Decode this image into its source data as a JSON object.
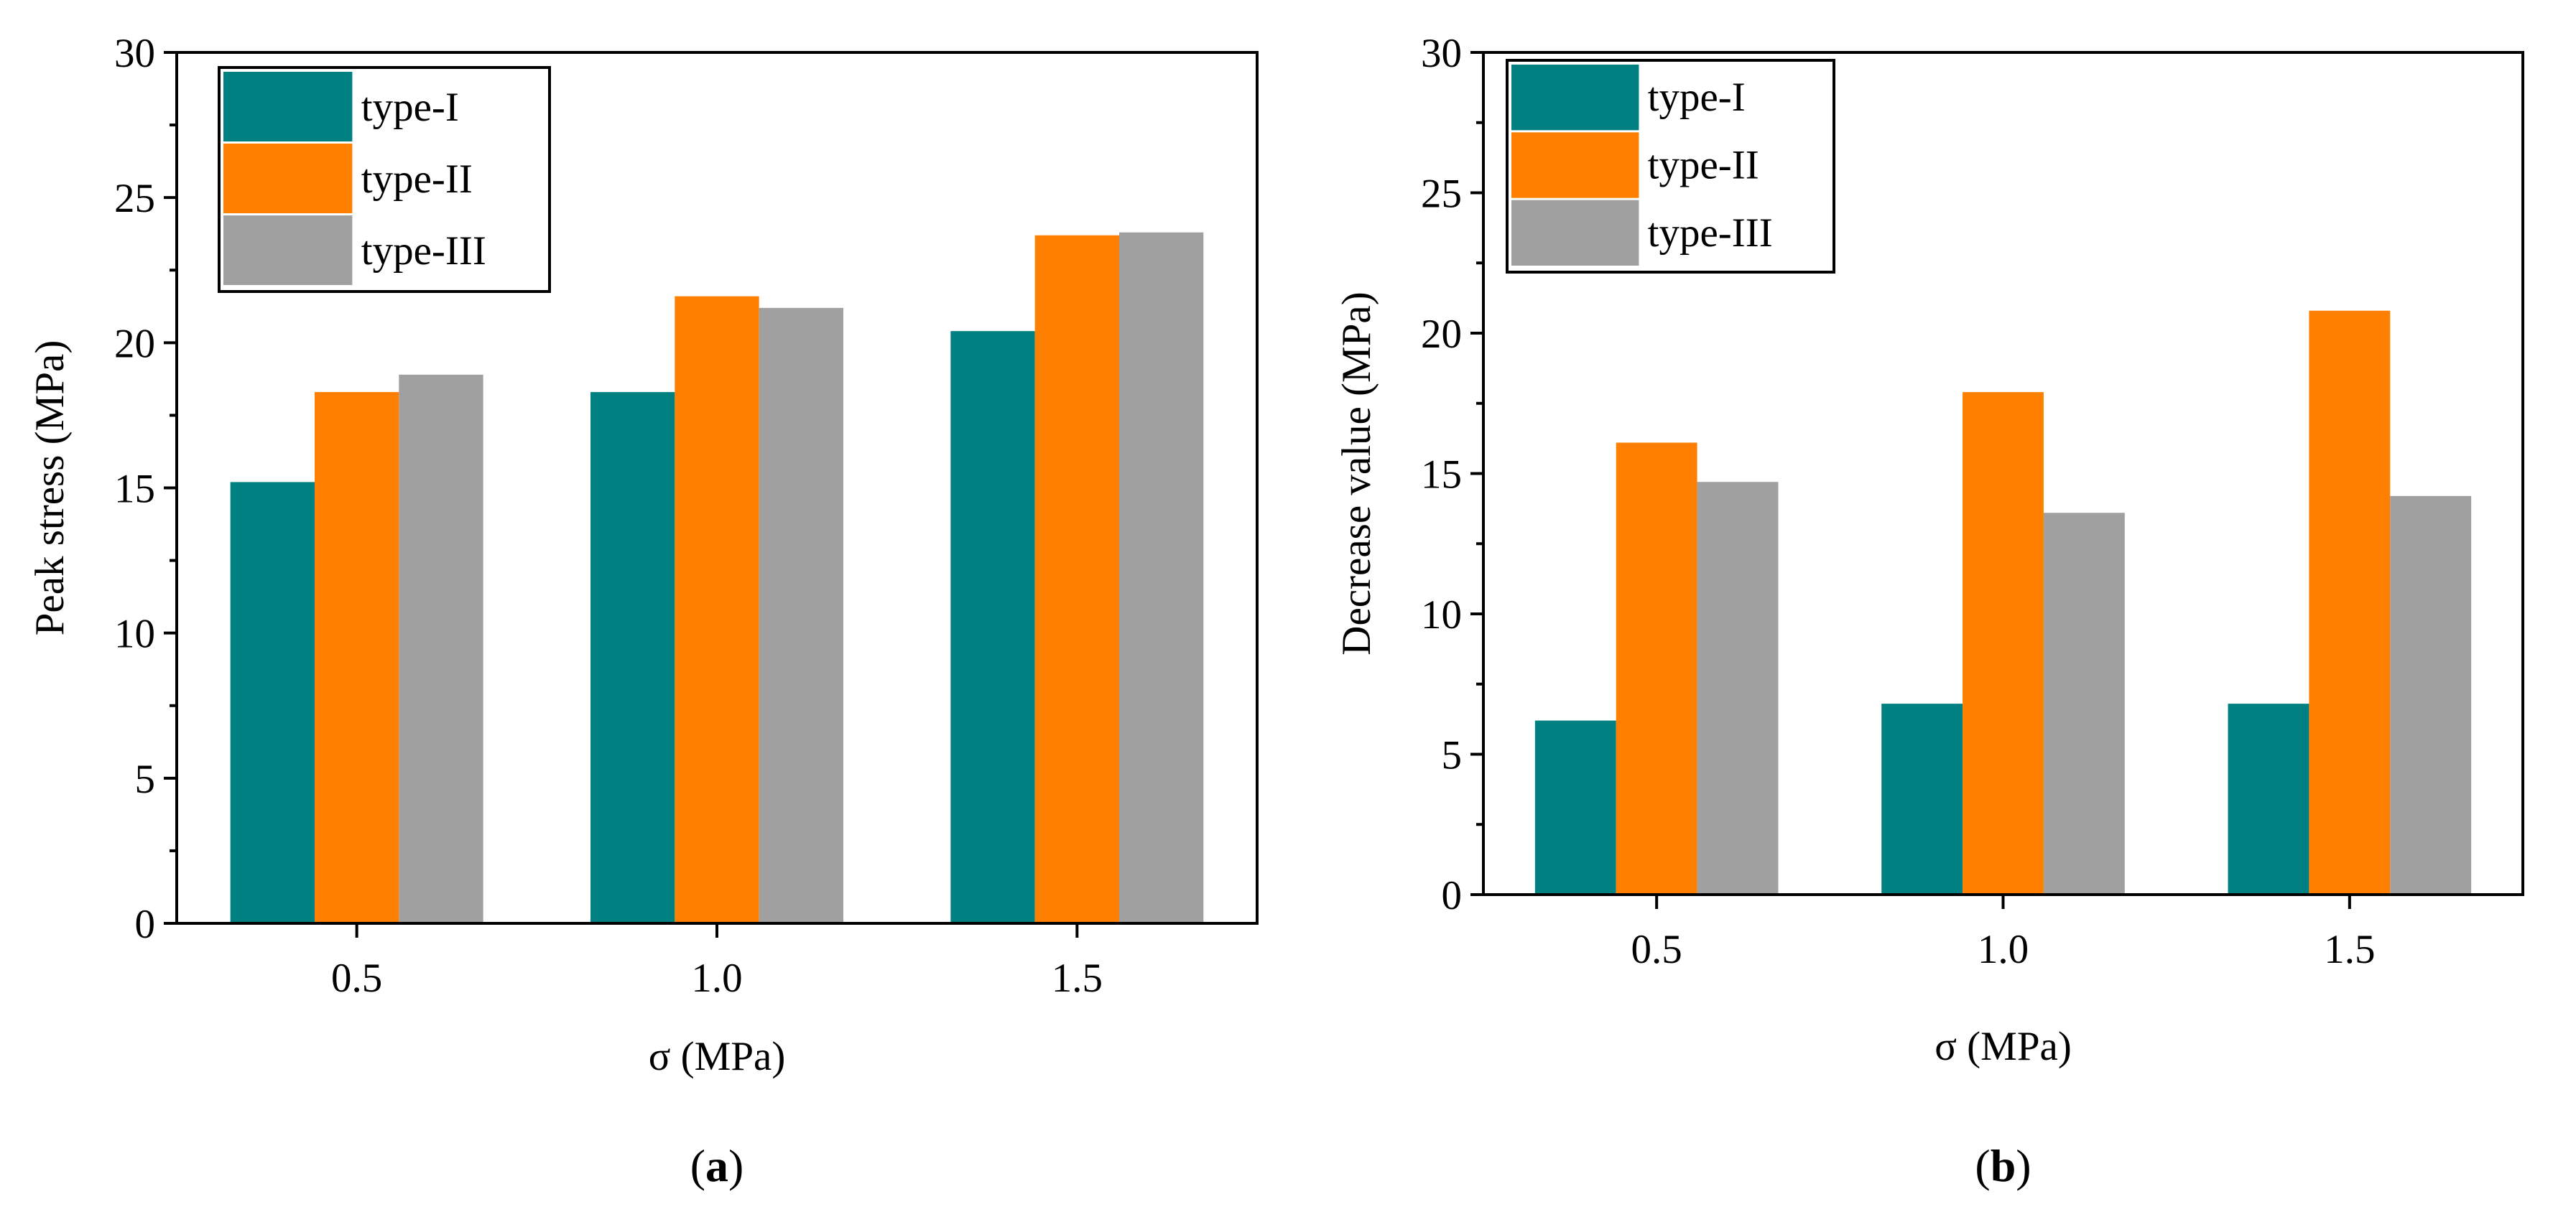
{
  "figure": {
    "colors": {
      "type_I": "#008080",
      "type_II": "#ff8000",
      "type_III": "#a0a0a0"
    }
  },
  "chart_data": [
    {
      "type": "bar",
      "panel_label": "(a)",
      "panel_label_parts": {
        "open": "(",
        "letter": "a",
        "close": ")"
      },
      "title": "",
      "xlabel": "σ (MPa)",
      "ylabel": "Peak stress (MPa)",
      "categories": [
        "0.5",
        "1.0",
        "1.5"
      ],
      "ylim": [
        0,
        30
      ],
      "yticks": [
        "0",
        "5",
        "10",
        "15",
        "20",
        "25",
        "30"
      ],
      "legend_position": "top-left",
      "grid": false,
      "series": [
        {
          "name": "type-I",
          "color": "#008080",
          "values": [
            15.2,
            18.3,
            20.4
          ]
        },
        {
          "name": "type-II",
          "color": "#ff8000",
          "values": [
            18.3,
            21.6,
            23.7
          ]
        },
        {
          "name": "type-III",
          "color": "#a0a0a0",
          "values": [
            18.9,
            21.2,
            23.8
          ]
        }
      ]
    },
    {
      "type": "bar",
      "panel_label": "(b)",
      "panel_label_parts": {
        "open": "(",
        "letter": "b",
        "close": ")"
      },
      "title": "",
      "xlabel": "σ (MPa)",
      "ylabel": "Decrease value (MPa)",
      "categories": [
        "0.5",
        "1.0",
        "1.5"
      ],
      "ylim": [
        0,
        30
      ],
      "yticks": [
        "0",
        "5",
        "10",
        "15",
        "20",
        "25",
        "30"
      ],
      "legend_position": "top-left",
      "grid": false,
      "series": [
        {
          "name": "type-I",
          "color": "#008080",
          "values": [
            6.2,
            6.8,
            6.8
          ]
        },
        {
          "name": "type-II",
          "color": "#ff8000",
          "values": [
            16.1,
            17.9,
            20.8
          ]
        },
        {
          "name": "type-III",
          "color": "#a0a0a0",
          "values": [
            14.7,
            13.6,
            14.2
          ]
        }
      ]
    }
  ]
}
